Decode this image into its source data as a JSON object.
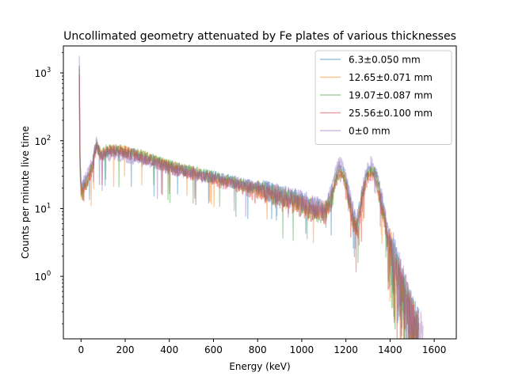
{
  "chart_data": {
    "type": "line",
    "title": "Uncollimated geometry attenuated by Fe plates of various thicknesses",
    "xlabel": "Energy (keV)",
    "ylabel": "Counts per minute live time",
    "xlim": [
      -80,
      1700
    ],
    "ylim": [
      0.12,
      2500
    ],
    "y_scale": "log",
    "x_ticks": [
      0,
      200,
      400,
      600,
      800,
      1000,
      1200,
      1400,
      1600
    ],
    "x_tick_labels": [
      "0",
      "200",
      "400",
      "600",
      "800",
      "1000",
      "1200",
      "1400",
      "1600"
    ],
    "y_ticks": [
      1,
      10,
      100,
      1000
    ],
    "y_tick_labels": [
      "10^0",
      "10^1",
      "10^2",
      "10^3"
    ],
    "grid": false,
    "legend_position": "top-right",
    "series": [
      {
        "name": "6.3±0.050 mm",
        "color": "#1f77b4",
        "x": [
          -8,
          -5,
          0,
          10,
          30,
          50,
          70,
          90,
          120,
          160,
          200,
          250,
          300,
          350,
          400,
          450,
          500,
          550,
          600,
          650,
          700,
          750,
          800,
          850,
          900,
          950,
          1000,
          1050,
          1100,
          1130,
          1150,
          1170,
          1190,
          1210,
          1230,
          1250,
          1270,
          1290,
          1310,
          1330,
          1350,
          1370,
          1390,
          1410,
          1430,
          1450,
          1470,
          1490,
          1510,
          1530
        ],
        "y": [
          1200,
          60,
          20,
          22,
          30,
          45,
          95,
          60,
          70,
          72,
          68,
          62,
          55,
          48,
          42,
          38,
          35,
          32,
          30,
          27,
          25,
          23,
          21,
          19,
          17,
          15,
          13,
          11,
          10,
          14,
          28,
          42,
          35,
          18,
          9,
          6,
          14,
          30,
          42,
          38,
          22,
          10,
          4,
          2.5,
          1.5,
          0.9,
          0.6,
          0.4,
          0.25,
          0.18
        ]
      },
      {
        "name": "12.65±0.071 mm",
        "color": "#ff7f0e",
        "x": [
          -8,
          -5,
          0,
          10,
          30,
          50,
          70,
          90,
          120,
          160,
          200,
          250,
          300,
          350,
          400,
          450,
          500,
          550,
          600,
          650,
          700,
          750,
          800,
          850,
          900,
          950,
          1000,
          1050,
          1100,
          1130,
          1150,
          1170,
          1190,
          1210,
          1230,
          1250,
          1270,
          1290,
          1310,
          1330,
          1350,
          1370,
          1390,
          1410,
          1430,
          1450,
          1470,
          1490,
          1510,
          1530
        ],
        "y": [
          1100,
          55,
          18,
          20,
          28,
          42,
          90,
          62,
          72,
          74,
          70,
          64,
          56,
          49,
          43,
          39,
          35,
          32,
          29,
          26,
          24,
          22,
          20,
          18,
          16,
          14,
          12,
          10.5,
          9.5,
          13,
          25,
          38,
          32,
          16,
          8,
          5.5,
          13,
          28,
          38,
          35,
          20,
          9,
          3.5,
          2.2,
          1.3,
          0.8,
          0.55,
          0.35,
          0.22,
          0.16
        ]
      },
      {
        "name": "19.07±0.087 mm",
        "color": "#2ca02c",
        "x": [
          -8,
          -5,
          0,
          10,
          30,
          50,
          70,
          90,
          120,
          160,
          200,
          250,
          300,
          350,
          400,
          450,
          500,
          550,
          600,
          650,
          700,
          750,
          800,
          850,
          900,
          950,
          1000,
          1050,
          1100,
          1130,
          1150,
          1170,
          1190,
          1210,
          1230,
          1250,
          1270,
          1290,
          1310,
          1330,
          1350,
          1370,
          1390,
          1410,
          1430,
          1450,
          1470,
          1490,
          1510,
          1530
        ],
        "y": [
          1050,
          52,
          17,
          19,
          27,
          40,
          88,
          63,
          74,
          75,
          71,
          65,
          57,
          50,
          44,
          40,
          36,
          33,
          30,
          27,
          24,
          22,
          20,
          18,
          16,
          14,
          12,
          10,
          9,
          12,
          23,
          35,
          30,
          15,
          7.5,
          5,
          12,
          26,
          36,
          33,
          19,
          8.5,
          3.2,
          2,
          1.2,
          0.75,
          0.5,
          0.32,
          0.2,
          0.15
        ]
      },
      {
        "name": "25.56±0.100 mm",
        "color": "#d62728",
        "x": [
          -8,
          -5,
          0,
          10,
          30,
          50,
          70,
          90,
          120,
          160,
          200,
          250,
          300,
          350,
          400,
          450,
          500,
          550,
          600,
          650,
          700,
          750,
          800,
          850,
          900,
          950,
          1000,
          1050,
          1100,
          1130,
          1150,
          1170,
          1190,
          1210,
          1230,
          1250,
          1270,
          1290,
          1310,
          1330,
          1350,
          1370,
          1390,
          1410,
          1430,
          1450,
          1470,
          1490,
          1510,
          1530
        ],
        "y": [
          1000,
          50,
          16,
          18,
          25,
          38,
          85,
          60,
          70,
          72,
          68,
          62,
          54,
          47,
          41,
          37,
          33,
          30,
          27,
          24,
          22,
          20,
          18,
          16,
          14,
          12.5,
          11,
          9.5,
          8.5,
          11,
          21,
          32,
          27,
          14,
          7,
          4.5,
          11,
          24,
          33,
          30,
          17,
          8,
          3,
          1.8,
          1.1,
          0.7,
          0.45,
          0.3,
          0.19,
          0.14
        ]
      },
      {
        "name": "0±0 mm",
        "color": "#9467bd",
        "x": [
          -8,
          -5,
          0,
          10,
          30,
          50,
          70,
          90,
          120,
          160,
          200,
          250,
          300,
          350,
          400,
          450,
          500,
          550,
          600,
          650,
          700,
          750,
          800,
          850,
          900,
          950,
          1000,
          1050,
          1100,
          1130,
          1150,
          1170,
          1190,
          1210,
          1230,
          1250,
          1270,
          1290,
          1310,
          1330,
          1350,
          1370,
          1390,
          1410,
          1430,
          1450,
          1470,
          1490,
          1510,
          1530,
          1550
        ],
        "y": [
          1500,
          70,
          22,
          24,
          32,
          48,
          100,
          58,
          62,
          64,
          60,
          56,
          50,
          45,
          40,
          36,
          33,
          31,
          29,
          27,
          25,
          23,
          21,
          19,
          17,
          15.5,
          14,
          12,
          11,
          16,
          32,
          50,
          42,
          20,
          10,
          7,
          16,
          34,
          50,
          44,
          25,
          11,
          4.5,
          2.8,
          1.7,
          1,
          0.65,
          0.42,
          0.27,
          0.19,
          0.14
        ]
      }
    ]
  }
}
